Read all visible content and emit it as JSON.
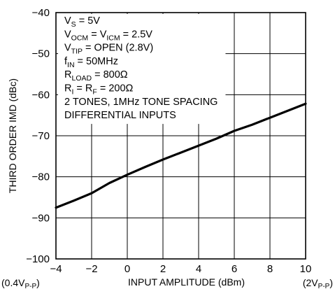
{
  "chart_data": {
    "type": "line",
    "title": "",
    "xlabel": "INPUT AMPLITUDE (dBm)",
    "ylabel": "THIRD ORDER IMD (dBc)",
    "xlim": [
      -4,
      10
    ],
    "ylim": [
      -100,
      -40
    ],
    "xticks": [
      "−4",
      "−2",
      "0",
      "2",
      "4",
      "6",
      "8",
      "10"
    ],
    "yticks": [
      "−40",
      "−50",
      "−60",
      "−70",
      "−80",
      "−90",
      "−100"
    ],
    "x_end_labels": {
      "left": [
        "(0.4V",
        "P-P",
        ")"
      ],
      "right": [
        "(2V",
        "P-P",
        ")"
      ]
    },
    "grid": true,
    "series": [
      {
        "x": [
          -4,
          -3,
          -2,
          -1,
          0,
          1,
          2,
          3,
          4,
          5,
          6,
          7,
          8,
          9,
          10
        ],
        "y": [
          -87.5,
          -85.8,
          -84.0,
          -81.5,
          -79.5,
          -77.6,
          -75.8,
          -74.1,
          -72.4,
          -70.7,
          -68.8,
          -67.3,
          -65.6,
          -63.9,
          -62.2
        ]
      }
    ],
    "annotations": [
      [
        "V",
        "S",
        " = 5V"
      ],
      [
        "V",
        "OCM",
        " = V",
        "ICM",
        " = 2.5V"
      ],
      [
        "V",
        "TIP",
        " = OPEN (2.8V)"
      ],
      [
        "f",
        "IN",
        " = 50MHz"
      ],
      [
        "R",
        "LOAD",
        " = 800Ω"
      ],
      [
        "R",
        "I",
        " = R",
        "F",
        " = 200Ω"
      ],
      [
        "2 TONES, 1MHz TONE SPACING"
      ],
      [
        "DIFFERENTIAL INPUTS"
      ]
    ]
  }
}
